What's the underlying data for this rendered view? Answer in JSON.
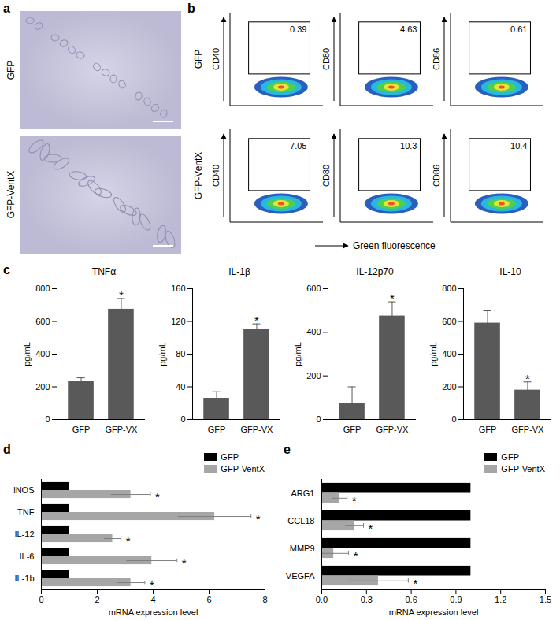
{
  "panel_a": {
    "panel": "a",
    "rows": [
      "GFP",
      "GFP-VentX"
    ]
  },
  "panel_b": {
    "panel": "b",
    "rows": [
      "GFP",
      "GFP-VentX"
    ],
    "y_labels": [
      "CD40",
      "CD80",
      "CD86"
    ],
    "x_label": "Green fluorescence",
    "gate_percentages": [
      [
        0.39,
        4.63,
        0.61
      ],
      [
        7.05,
        10.3,
        10.4
      ]
    ]
  },
  "chart_data": [
    {
      "panel": "c",
      "type": "bar",
      "title": "TNFα",
      "categories": [
        "GFP",
        "GFP-VX"
      ],
      "values": [
        235,
        675
      ],
      "errors": [
        20,
        65
      ],
      "annotations": [
        null,
        "*"
      ],
      "color": "#595959",
      "ylabel": "pg/mL",
      "ylim": [
        0,
        800
      ],
      "yticks": [
        0,
        200,
        400,
        600,
        800
      ]
    },
    {
      "type": "bar",
      "title": "IL-1β",
      "categories": [
        "GFP",
        "GFP-VX"
      ],
      "values": [
        26,
        110
      ],
      "errors": [
        8,
        7
      ],
      "annotations": [
        null,
        "*"
      ],
      "color": "#595959",
      "ylabel": "pg/mL",
      "ylim": [
        0,
        160
      ],
      "yticks": [
        0,
        40,
        80,
        120,
        160
      ]
    },
    {
      "type": "bar",
      "title": "IL-12p70",
      "categories": [
        "GFP",
        "GFP-VX"
      ],
      "values": [
        75,
        475
      ],
      "errors": [
        75,
        65
      ],
      "annotations": [
        null,
        "*"
      ],
      "color": "#595959",
      "ylabel": "pg/mL",
      "ylim": [
        0,
        600
      ],
      "yticks": [
        0,
        200,
        400,
        600
      ]
    },
    {
      "type": "bar",
      "title": "IL-10",
      "categories": [
        "GFP",
        "GFP-VX"
      ],
      "values": [
        590,
        180
      ],
      "errors": [
        75,
        50
      ],
      "annotations": [
        null,
        "*"
      ],
      "color": "#595959",
      "ylabel": "pg/mL",
      "ylim": [
        0,
        800
      ],
      "yticks": [
        0,
        200,
        400,
        600,
        800
      ]
    },
    {
      "panel": "d",
      "type": "bar",
      "orientation": "horizontal",
      "categories": [
        "iNOS",
        "TNF",
        "IL-12",
        "IL-6",
        "IL-1b"
      ],
      "series": [
        {
          "name": "GFP",
          "color": "#000000",
          "values": [
            1,
            1,
            1,
            1,
            1
          ]
        },
        {
          "name": "GFP-VentX",
          "color": "#a6a6a6",
          "values": [
            3.2,
            6.2,
            2.55,
            3.95,
            3.2
          ],
          "errors": [
            0.7,
            1.3,
            0.3,
            0.9,
            0.5
          ],
          "annotations": [
            "*",
            "*",
            "*",
            "*",
            "*"
          ]
        }
      ],
      "xlabel": "mRNA expression level",
      "xlim": [
        0,
        8
      ],
      "xticks": [
        0,
        2,
        4,
        6,
        8
      ],
      "legend": "top-right"
    },
    {
      "panel": "e",
      "type": "bar",
      "orientation": "horizontal",
      "categories": [
        "ARG1",
        "CCL18",
        "MMP9",
        "VEGFA"
      ],
      "series": [
        {
          "name": "GFP",
          "color": "#000000",
          "values": [
            1,
            1,
            1,
            1
          ]
        },
        {
          "name": "GFP-VentX",
          "color": "#a6a6a6",
          "values": [
            0.12,
            0.22,
            0.08,
            0.38
          ],
          "errors": [
            0.05,
            0.06,
            0.1,
            0.2
          ],
          "annotations": [
            "*",
            "*",
            "*",
            "*"
          ]
        }
      ],
      "xlabel": "mRNA expression level",
      "xlim": [
        0,
        1.5
      ],
      "xticks": [
        {
          "value": 0,
          "label": "0.0"
        },
        0.3,
        0.6,
        0.9,
        1.2,
        1.5
      ],
      "legend": "top-right"
    }
  ]
}
